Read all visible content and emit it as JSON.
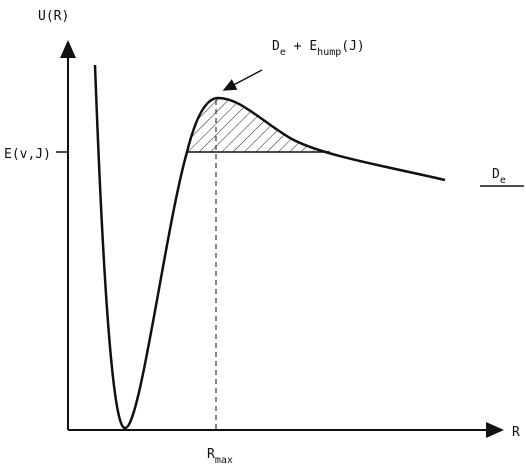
{
  "labels": {
    "y_axis": "U(R)",
    "x_axis": "R",
    "energy_level": "E(v,J)",
    "r_max": {
      "main": "R",
      "sub": "max"
    },
    "hump": {
      "d": "D",
      "d_sub": "e",
      "plus_e": " + E",
      "e_sub": "hump",
      "tail": "(J)"
    },
    "dissociation": {
      "main": "D",
      "sub": "e"
    }
  }
}
